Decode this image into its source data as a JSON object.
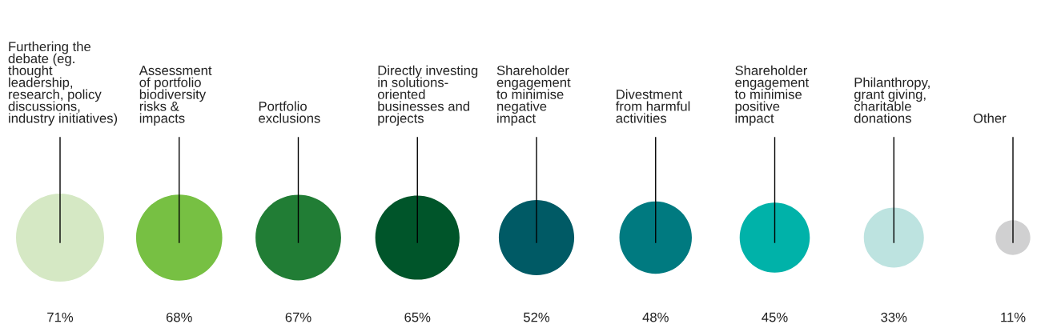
{
  "chart_data": {
    "type": "other",
    "categories": [
      "Furthering the\ndebate (eg.\nthought\nleadership,\nresearch, policy\ndiscussions,\nindustry initiatives)",
      "Assessment\nof portfolio\nbiodiversity\nrisks &\nimpacts",
      "Portfolio\nexclusions",
      "Directly investing\nin solutions-\noriented\nbusinesses and\nprojects",
      "Shareholder\nengagement\nto minimise\nnegative\nimpact",
      "Divestment\nfrom harmful\nactivities",
      "Shareholder\nengagement\nto minimise\npositive\nimpact",
      "Philanthropy,\ngrant giving,\ncharitable\ndonations",
      "Other"
    ],
    "values": [
      71,
      68,
      67,
      65,
      52,
      48,
      45,
      33,
      11
    ],
    "value_labels": [
      "71%",
      "68%",
      "67%",
      "65%",
      "52%",
      "48%",
      "45%",
      "33%",
      "11%"
    ],
    "colors": [
      "#d5e8c4",
      "#77c043",
      "#217d35",
      "#00552a",
      "#005a65",
      "#007a80",
      "#00b2a9",
      "#bde3e0",
      "#d0d0d1"
    ]
  }
}
